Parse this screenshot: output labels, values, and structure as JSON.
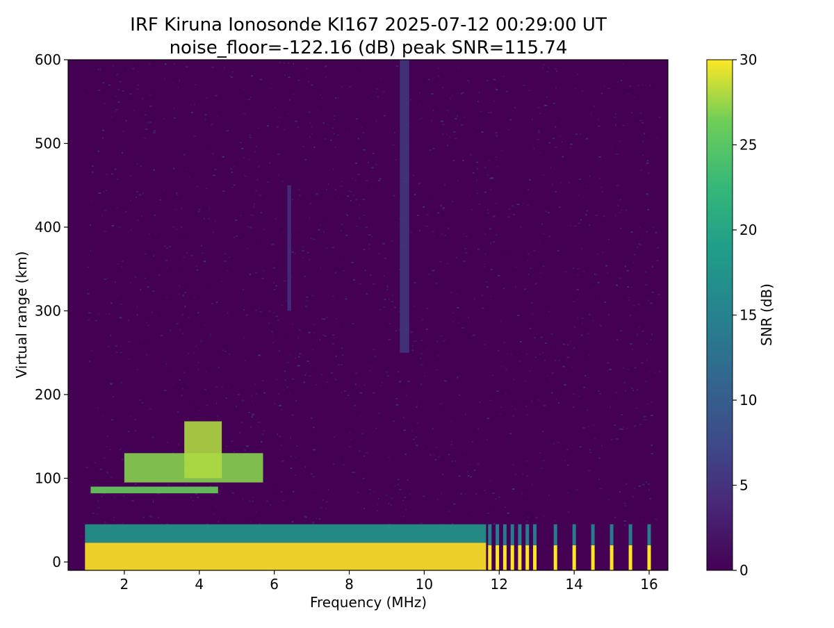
{
  "chart_data": {
    "type": "heatmap",
    "title": "IRF Kiruna Ionosonde KI167 2025-07-12 00:29:00  UT",
    "subtitle": "noise_floor=-122.16 (dB) peak SNR=115.74",
    "xlabel": "Frequency (MHz)",
    "ylabel": "Virtual range (km)",
    "xlim": [
      0.5,
      16.5
    ],
    "ylim": [
      -10,
      600
    ],
    "x_ticks": [
      2,
      4,
      6,
      8,
      10,
      12,
      14,
      16
    ],
    "y_ticks": [
      0,
      100,
      200,
      300,
      400,
      500,
      600
    ],
    "colorbar": {
      "label": "SNR (dB)",
      "colormap": "viridis",
      "range": [
        0,
        30
      ],
      "ticks": [
        0,
        5,
        10,
        15,
        20,
        25,
        30
      ]
    },
    "data_extent": {
      "freq_start": 0.95,
      "freq_end": 16.3,
      "range_min": -10,
      "range_max": 600
    },
    "features": [
      {
        "name": "ground-saturation",
        "freq": [
          0.95,
          11.65
        ],
        "range": [
          -10,
          23
        ],
        "snr": 30
      },
      {
        "name": "ground-fringe",
        "freq": [
          0.95,
          11.65
        ],
        "range": [
          23,
          45
        ],
        "snr": 18
      },
      {
        "name": "sporadic-e-lower-trace",
        "freq": [
          1.1,
          4.5
        ],
        "range": [
          82,
          90
        ],
        "snr": 26
      },
      {
        "name": "sporadic-e-upper-trace",
        "freq": [
          2.0,
          5.7
        ],
        "range": [
          95,
          130
        ],
        "snr": 27
      },
      {
        "name": "sporadic-e-spread",
        "freq": [
          3.6,
          4.6
        ],
        "range": [
          100,
          168
        ],
        "snr": 28
      },
      {
        "name": "interference-line-9.5",
        "freq": [
          9.35,
          9.6
        ],
        "range": [
          250,
          600
        ],
        "snr": 7
      },
      {
        "name": "interference-line-6.4",
        "freq": [
          6.35,
          6.45
        ],
        "range": [
          300,
          450
        ],
        "snr": 6
      }
    ],
    "high_freq_bars": [
      11.75,
      11.95,
      12.15,
      12.35,
      12.55,
      12.75,
      12.95,
      13.5,
      14.0,
      14.5,
      15.0,
      15.5,
      16.0
    ],
    "high_freq_bar_top": 20
  },
  "colors": {
    "viridis_0": "#440154",
    "viridis_low": "#46327e",
    "viridis_mid": "#21918c",
    "viridis_high": "#5ec962",
    "viridis_max": "#fde725"
  }
}
